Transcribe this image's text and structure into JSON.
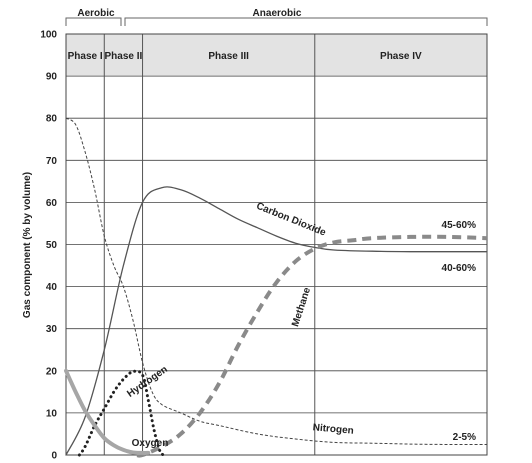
{
  "chart_data": {
    "type": "line",
    "title": "",
    "xlabel": "",
    "ylabel": "Gas component (% by volume)",
    "ylim": [
      0,
      100
    ],
    "xlim": [
      0,
      11
    ],
    "yticks": [
      0,
      10,
      20,
      30,
      40,
      50,
      60,
      70,
      80,
      90,
      100
    ],
    "grid": "horizontal",
    "zones": [
      {
        "label": "Aerobic",
        "from": 0,
        "to": 1
      },
      {
        "label": "Anaerobic",
        "from": 1,
        "to": 11
      }
    ],
    "phases": [
      {
        "label": "Phase I",
        "from": 0,
        "to": 1
      },
      {
        "label": "Phase II",
        "from": 1,
        "to": 2
      },
      {
        "label": "Phase III",
        "from": 2,
        "to": 6.5
      },
      {
        "label": "Phase IV",
        "from": 6.5,
        "to": 11
      }
    ],
    "series": [
      {
        "name": "Carbon Dioxide",
        "style": "solid-thin",
        "color": "#555555",
        "x": [
          0,
          0.5,
          1,
          1.5,
          2,
          2.5,
          3,
          3.5,
          4,
          4.5,
          5,
          5.5,
          6,
          6.5,
          7,
          8,
          9,
          10,
          11
        ],
        "y": [
          0,
          9,
          25,
          45,
          60,
          63.5,
          63,
          61,
          58.5,
          56,
          54,
          52,
          50.3,
          49.3,
          48.7,
          48.4,
          48.3,
          48.3,
          48.3
        ]
      },
      {
        "name": "Methane",
        "style": "dashed-thick",
        "color": "#8a8a8a",
        "x": [
          1.85,
          2,
          2.5,
          3,
          3.5,
          4,
          4.5,
          5,
          5.5,
          6,
          6.5,
          7,
          7.5,
          8,
          9,
          10,
          11
        ],
        "y": [
          0,
          0,
          2,
          5,
          10,
          17,
          26,
          34,
          41,
          46,
          49,
          50.5,
          51,
          51.5,
          51.8,
          51.8,
          51.5
        ]
      },
      {
        "name": "Nitrogen",
        "style": "dashed-fine",
        "color": "#444444",
        "x": [
          0,
          0.25,
          0.5,
          0.75,
          1,
          1.25,
          1.5,
          1.75,
          2,
          2.25,
          2.5,
          3,
          3.5,
          4,
          5,
          6,
          7,
          8,
          9,
          10,
          11
        ],
        "y": [
          80,
          78.5,
          72,
          63,
          52,
          45,
          40,
          32,
          22,
          15,
          12,
          10,
          8,
          7,
          5,
          3.8,
          3,
          2.8,
          2.6,
          2.5,
          2.5
        ]
      },
      {
        "name": "Hydrogen",
        "style": "dotted-thick",
        "color": "#222222",
        "x": [
          0.35,
          0.5,
          0.75,
          1,
          1.25,
          1.5,
          1.75,
          2,
          2.15,
          2.3,
          2.45,
          2.55
        ],
        "y": [
          0,
          2,
          7,
          11,
          15,
          18,
          19.8,
          19,
          13,
          6,
          1,
          0
        ]
      },
      {
        "name": "Oxygen",
        "style": "solid-thick",
        "color": "#a6a6a6",
        "x": [
          0,
          0.25,
          0.5,
          0.75,
          1,
          1.25,
          1.5,
          1.75,
          2,
          2.15
        ],
        "y": [
          20,
          15,
          10.5,
          7,
          4,
          2.3,
          1.2,
          0.6,
          0.5,
          0.5
        ]
      }
    ],
    "annotations": [
      "45-60%",
      "40-60%",
      "2-5%"
    ]
  }
}
